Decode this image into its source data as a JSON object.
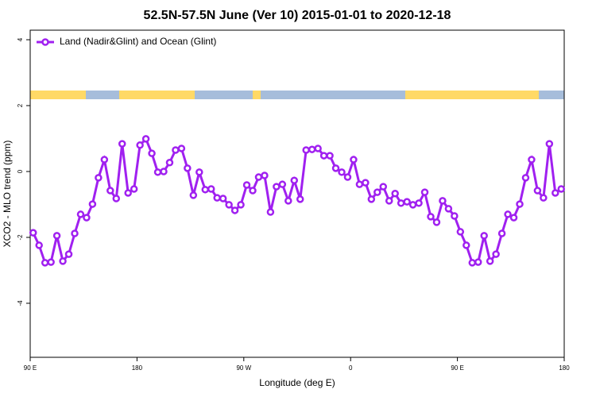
{
  "chart_data": {
    "type": "line",
    "title": "52.5N-57.5N June (Ver 10)   2015-01-01 to 2020-12-18",
    "x_label": "Longitude (deg E)",
    "y_label": "XCO2 - MLO trend (ppm)",
    "xlim": [
      90,
      540
    ],
    "ylim": [
      -5.64,
      4.29
    ],
    "xticks": [
      {
        "value": 90,
        "label": "90 E"
      },
      180,
      {
        "value": 270,
        "label": "90 W"
      },
      {
        "value": 360,
        "label": "0"
      },
      {
        "value": 450,
        "label": "90 E"
      },
      {
        "value": 540,
        "label": "180"
      }
    ],
    "yticks": [
      -4,
      -2,
      0,
      2,
      4
    ],
    "legend": "top-left",
    "x": [
      92.5,
      97.5,
      102.5,
      107.5,
      112.5,
      117.5,
      122.5,
      127.5,
      132.5,
      137.5,
      142.5,
      147.5,
      152.5,
      157.5,
      162.5,
      167.5,
      172.5,
      177.5,
      182.5,
      187.5,
      192.5,
      197.5,
      202.5,
      207.5,
      212.5,
      217.5,
      222.5,
      227.5,
      232.5,
      237.5,
      242.5,
      247.5,
      252.5,
      257.5,
      262.5,
      267.5,
      272.5,
      277.5,
      282.5,
      287.5,
      292.5,
      297.5,
      302.5,
      307.5,
      312.5,
      317.5,
      322.5,
      327.5,
      332.5,
      337.5,
      342.5,
      347.5,
      352.5,
      357.5,
      362.5,
      367.5,
      372.5,
      377.5,
      382.5,
      387.5,
      392.5,
      397.5,
      402.5,
      407.5,
      412.5,
      417.5,
      422.5,
      427.5,
      432.5,
      437.5,
      442.5,
      447.5,
      452.5,
      457.5,
      462.5,
      467.5,
      472.5,
      477.5,
      482.5,
      487.5,
      492.5,
      497.5,
      502.5,
      507.5,
      512.5,
      517.5,
      522.5,
      527.5,
      532.5,
      537.5
    ],
    "series": [
      {
        "name": "Land (Nadir&Glint) and Ocean (Glint)",
        "color": "#a020f0",
        "values": [
          -1.86,
          -2.24,
          -2.77,
          -2.75,
          -1.95,
          -2.72,
          -2.51,
          -1.88,
          -1.3,
          -1.4,
          -0.99,
          -0.19,
          0.36,
          -0.58,
          -0.82,
          0.84,
          -0.65,
          -0.53,
          0.8,
          0.99,
          0.55,
          -0.02,
          0.0,
          0.27,
          0.65,
          0.7,
          0.1,
          -0.72,
          -0.02,
          -0.55,
          -0.53,
          -0.8,
          -0.82,
          -1.01,
          -1.18,
          -1.01,
          -0.41,
          -0.58,
          -0.17,
          -0.12,
          -1.23,
          -0.46,
          -0.39,
          -0.89,
          -0.27,
          -0.84,
          0.65,
          0.67,
          0.7,
          0.48,
          0.48,
          0.1,
          -0.02,
          -0.17,
          0.36,
          -0.39,
          -0.34,
          -0.84,
          -0.63,
          -0.46,
          -0.89,
          -0.67,
          -0.96,
          -0.92,
          -1.01,
          -0.96,
          -0.63,
          -1.37,
          -1.54,
          -0.89,
          -1.13,
          -1.35,
          -1.83,
          -2.24,
          -2.77,
          -2.75,
          -1.95,
          -2.72,
          -2.51,
          -1.88,
          -1.3,
          -1.4,
          -0.99,
          -0.19,
          0.36,
          -0.58,
          -0.8,
          0.84,
          -0.65,
          -0.53
        ]
      }
    ]
  }
}
